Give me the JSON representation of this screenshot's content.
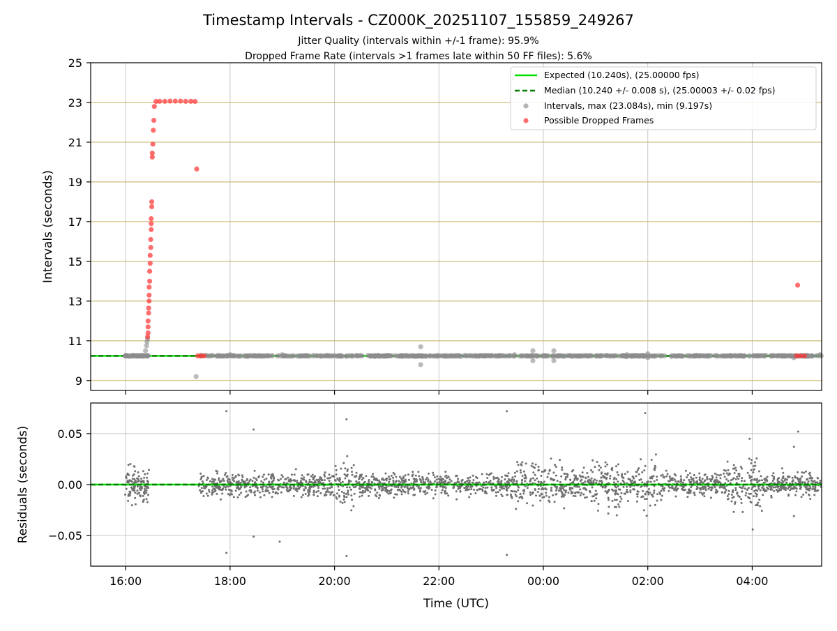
{
  "chart_data": [
    {
      "type": "scatter",
      "title": "Timestamp Intervals - CZ000K_20251107_155859_249267",
      "subtitles": [
        "Jitter Quality (intervals within +/-1 frame): 95.9%",
        "Dropped Frame Rate (intervals >1 frames late within 50 FF files): 5.6%"
      ],
      "xlabel": "",
      "ylabel": "Intervals (seconds)",
      "x_hours_range": [
        15.33,
        29.33
      ],
      "ylim": [
        8.5,
        25
      ],
      "yticks": [
        9,
        11,
        13,
        15,
        17,
        19,
        21,
        23,
        25
      ],
      "grid": true,
      "legend_position": "top-right",
      "colors": {
        "expected": "#00e000",
        "median": "#007a00",
        "intervals": "#8c8c8c",
        "dropped": "#ff3030",
        "hgrid": "#c9b56a"
      },
      "series": [
        {
          "name": "Expected (10.240s), (25.00000 fps)",
          "kind": "hline",
          "y": 10.24
        },
        {
          "name": "Median (10.240 +/- 0.008 s), (25.00003 +/- 0.02 fps)",
          "kind": "hline-dashed",
          "y": 10.24
        },
        {
          "name": "Intervals, max (23.084s), min (9.197s)",
          "kind": "points",
          "points": [
            [
              15.99,
              10.24
            ],
            [
              16.1,
              10.24
            ],
            [
              16.2,
              10.24
            ],
            [
              16.3,
              10.24
            ],
            [
              16.38,
              10.5
            ],
            [
              16.4,
              10.75
            ],
            [
              16.41,
              10.95
            ],
            [
              16.42,
              11.1
            ],
            [
              17.35,
              9.2
            ],
            [
              18.0,
              10.3
            ],
            [
              19.0,
              10.3
            ],
            [
              21.65,
              10.7
            ],
            [
              21.65,
              9.8
            ],
            [
              23.45,
              10.3
            ],
            [
              23.8,
              10.5
            ],
            [
              23.8,
              10.0
            ],
            [
              24.2,
              10.5
            ],
            [
              24.2,
              10.0
            ],
            [
              25.6,
              10.3
            ],
            [
              25.6,
              10.2
            ],
            [
              26.0,
              10.35
            ],
            [
              26.0,
              10.15
            ],
            [
              27.0,
              10.25
            ],
            [
              28.8,
              10.15
            ],
            [
              29.3,
              10.3
            ]
          ]
        },
        {
          "name": "Possible Dropped Frames",
          "kind": "points",
          "points": [
            [
              16.42,
              11.2
            ],
            [
              16.43,
              11.4
            ],
            [
              16.43,
              11.7
            ],
            [
              16.43,
              12.0
            ],
            [
              16.44,
              12.4
            ],
            [
              16.44,
              12.65
            ],
            [
              16.45,
              13.0
            ],
            [
              16.45,
              13.3
            ],
            [
              16.45,
              13.7
            ],
            [
              16.46,
              14.0
            ],
            [
              16.46,
              14.5
            ],
            [
              16.47,
              14.9
            ],
            [
              16.47,
              15.3
            ],
            [
              16.48,
              15.7
            ],
            [
              16.48,
              16.1
            ],
            [
              16.49,
              16.6
            ],
            [
              16.49,
              16.9
            ],
            [
              16.49,
              17.15
            ],
            [
              16.5,
              17.75
            ],
            [
              16.5,
              18.0
            ],
            [
              16.51,
              20.25
            ],
            [
              16.51,
              20.45
            ],
            [
              16.52,
              20.9
            ],
            [
              16.53,
              21.6
            ],
            [
              16.54,
              22.1
            ],
            [
              16.55,
              22.8
            ],
            [
              16.58,
              23.05
            ],
            [
              16.65,
              23.06
            ],
            [
              16.75,
              23.06
            ],
            [
              16.85,
              23.07
            ],
            [
              16.95,
              23.07
            ],
            [
              17.05,
              23.07
            ],
            [
              17.15,
              23.06
            ],
            [
              17.25,
              23.06
            ],
            [
              17.33,
              23.05
            ],
            [
              17.36,
              19.65
            ],
            [
              17.38,
              10.24
            ],
            [
              17.44,
              10.24
            ],
            [
              17.5,
              10.24
            ],
            [
              28.87,
              13.8
            ],
            [
              28.85,
              10.24
            ],
            [
              28.92,
              10.24
            ],
            [
              29.0,
              10.24
            ]
          ]
        }
      ]
    },
    {
      "type": "scatter",
      "xlabel": "Time (UTC)",
      "ylabel": "Residuals (seconds)",
      "x_hours_range": [
        15.33,
        29.33
      ],
      "ylim": [
        -0.08,
        0.08
      ],
      "yticks": [
        0.05,
        0.0,
        -0.05
      ],
      "ytick_labels": [
        "0.05",
        "0.00",
        "−0.05"
      ],
      "xticks": [
        16,
        18,
        20,
        22,
        24,
        26,
        28
      ],
      "xtick_labels": [
        "16:00",
        "18:00",
        "20:00",
        "22:00",
        "00:00",
        "02:00",
        "04:00"
      ],
      "grid": true,
      "colors": {
        "points": "#707070",
        "expected": "#00e000",
        "median": "#007a00"
      },
      "gap_hours": [
        16.45,
        17.4
      ],
      "outliers": [
        [
          17.93,
          0.072
        ],
        [
          17.93,
          -0.067
        ],
        [
          18.45,
          0.054
        ],
        [
          18.45,
          -0.051
        ],
        [
          18.95,
          -0.056
        ],
        [
          20.23,
          0.064
        ],
        [
          20.23,
          -0.07
        ],
        [
          23.3,
          0.072
        ],
        [
          23.3,
          -0.069
        ],
        [
          25.95,
          0.07
        ],
        [
          27.95,
          0.045
        ],
        [
          28.01,
          -0.044
        ],
        [
          28.88,
          0.052
        ],
        [
          28.8,
          0.037
        ],
        [
          28.8,
          -0.031
        ]
      ]
    }
  ]
}
